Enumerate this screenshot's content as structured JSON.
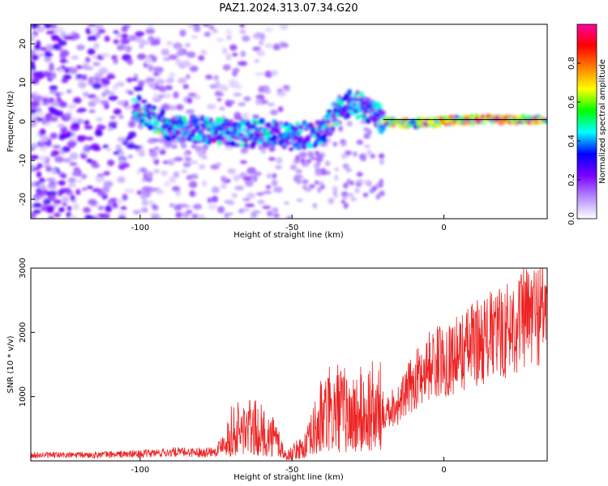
{
  "title": "PAZ1.2024.313.07.34.G20",
  "chart_data": [
    {
      "type": "heatmap",
      "xlabel": "Height of straight line (km)",
      "ylabel": "Frequency (Hz)",
      "xlim": [
        -136,
        34
      ],
      "ylim": [
        -25,
        25
      ],
      "xticks": [
        -100,
        -50,
        0
      ],
      "yticks": [
        -20,
        -10,
        0,
        10,
        20
      ],
      "colorbar": {
        "label": "Normalized spectral amplitude",
        "range": [
          0.0,
          1.0
        ],
        "ticks": [
          0.0,
          0.2,
          0.4,
          0.6,
          0.8
        ],
        "ticklabels": [
          "0.0",
          "0.2",
          "0.4",
          "0.6",
          "0.8"
        ],
        "colormap": [
          "#ffffff",
          "#b38cff",
          "#7a00ff",
          "#0000ff",
          "#00ffff",
          "#00ff00",
          "#ffff00",
          "#ff8000",
          "#ff0000",
          "#ff00a0"
        ]
      },
      "ridge": {
        "description_points_x": [
          -100,
          -90,
          -80,
          -70,
          -60,
          -50,
          -40,
          -35,
          -30,
          -25,
          -20,
          -10,
          0,
          10,
          20,
          34
        ],
        "description_points_y": [
          3,
          -2,
          -2,
          -3,
          -3,
          -4,
          -3,
          3,
          5,
          3,
          0,
          -0.5,
          0,
          0.5,
          0.5,
          0.5
        ]
      },
      "grid": false
    },
    {
      "type": "line",
      "xlabel": "Height of straight line (km)",
      "ylabel": "SNR (10 * v/v)",
      "xlim": [
        -136,
        34
      ],
      "ylim": [
        0,
        3000
      ],
      "xticks": [
        -100,
        -50,
        0
      ],
      "yticks": [
        1000,
        2000,
        3000
      ],
      "color": "#ee2222",
      "series": [
        {
          "x": [
            -136,
            -120,
            -100,
            -90,
            -80,
            -75,
            -70,
            -65,
            -60,
            -55,
            -52,
            -48,
            -45,
            -40,
            -35,
            -30,
            -25,
            -20,
            -15,
            -10,
            -5,
            0,
            5,
            10,
            15,
            20,
            25,
            30,
            34
          ],
          "y": [
            100,
            100,
            120,
            150,
            150,
            170,
            500,
            600,
            500,
            400,
            80,
            200,
            300,
            800,
            900,
            800,
            900,
            900,
            1000,
            1400,
            1700,
            1800,
            1900,
            2100,
            2200,
            2300,
            2500,
            2600,
            2750
          ]
        }
      ],
      "grid": false
    }
  ]
}
